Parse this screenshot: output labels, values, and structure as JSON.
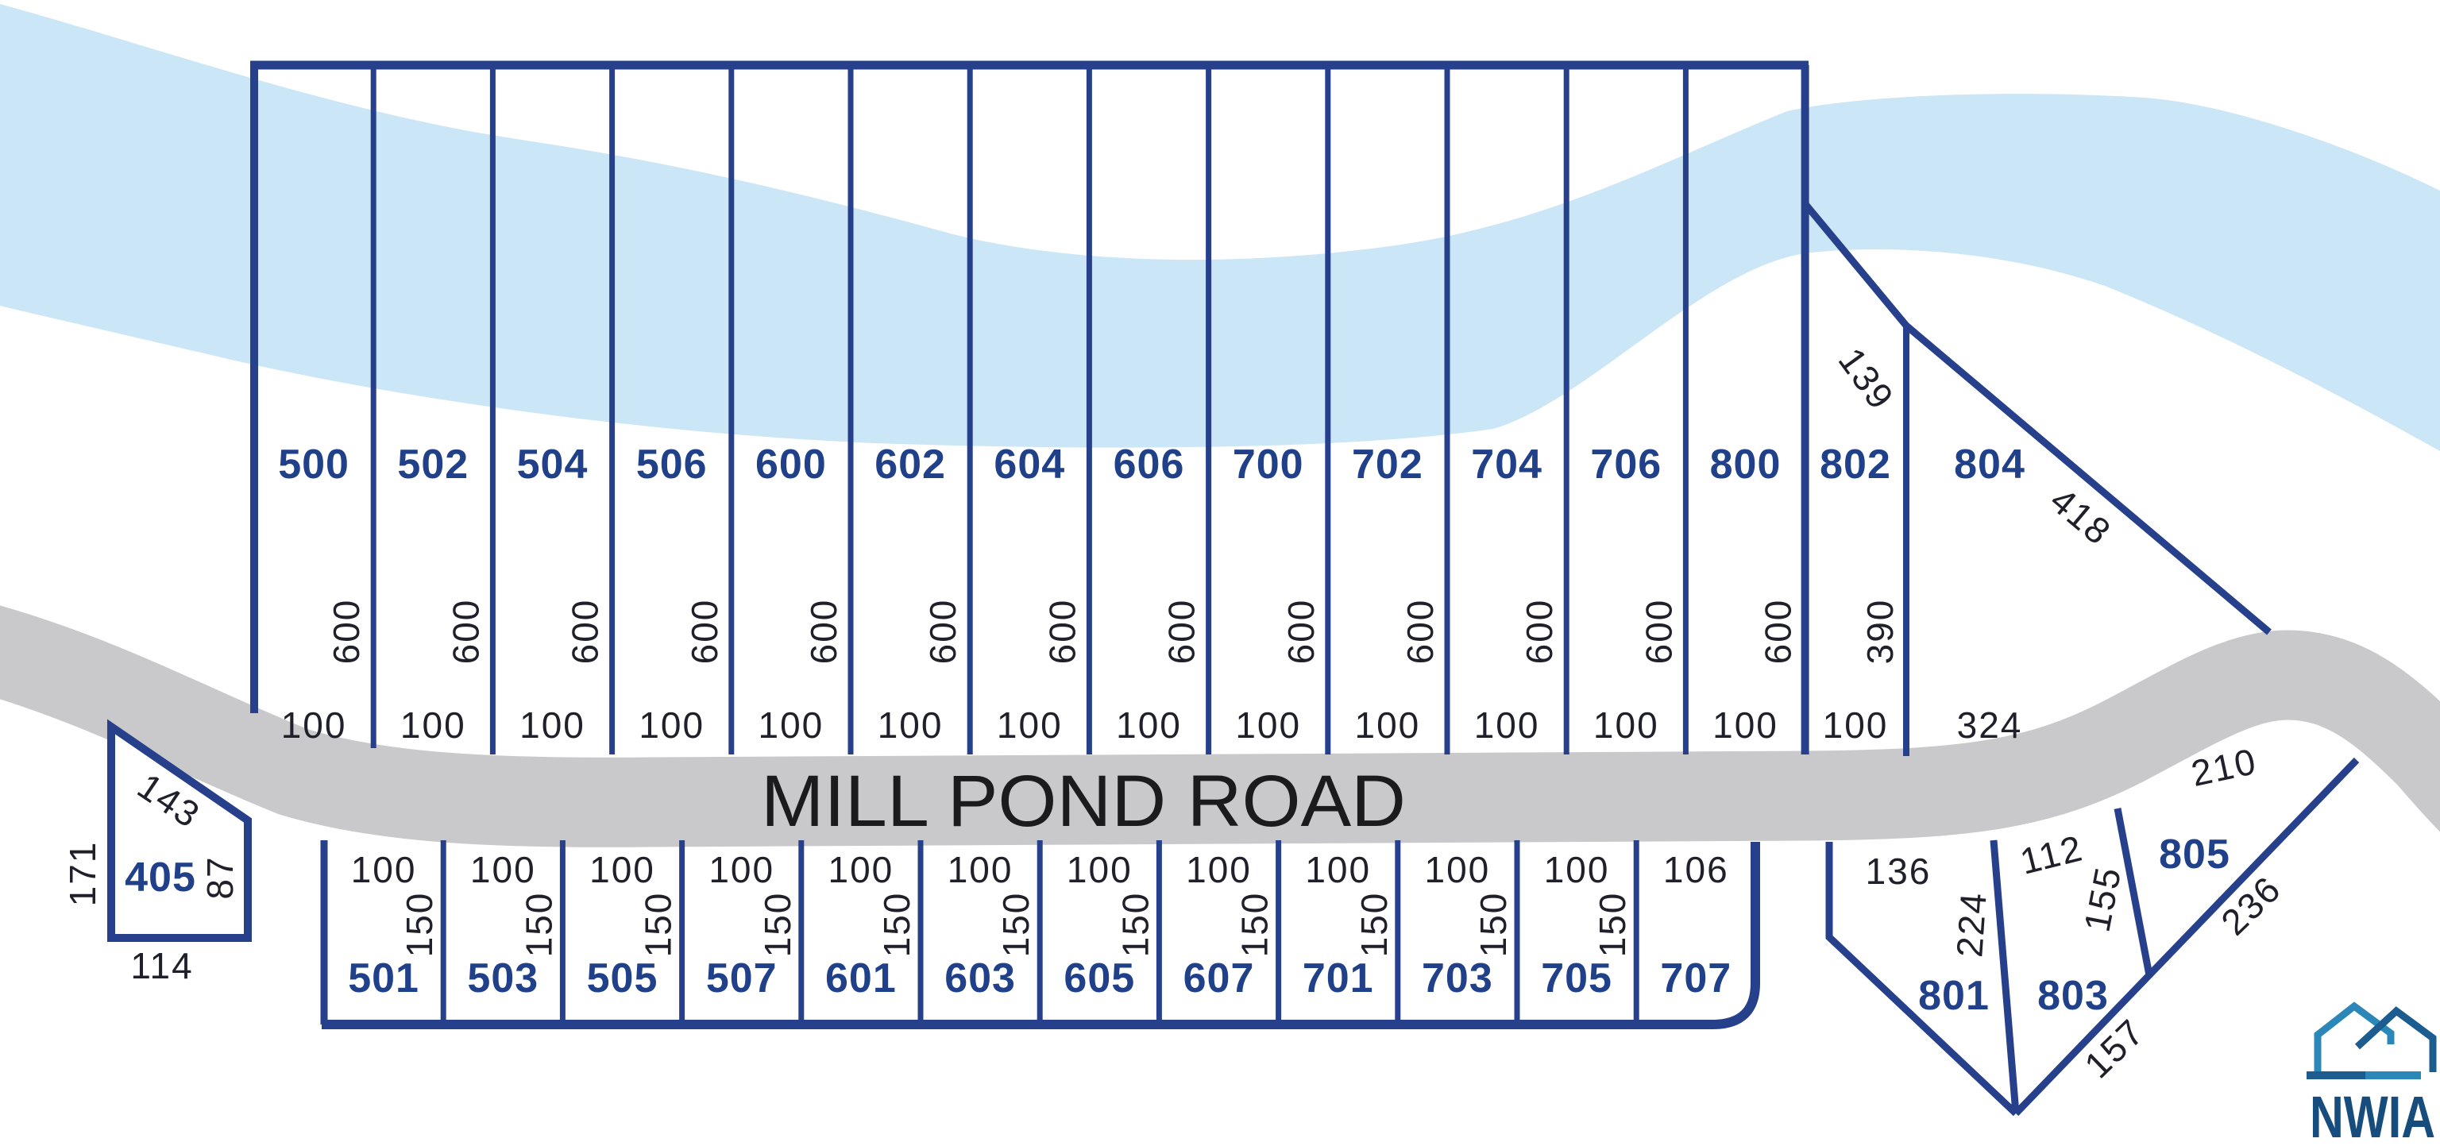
{
  "road": {
    "name": "MILL POND ROAD"
  },
  "colors": {
    "river": "#cbe6f7",
    "road": "#c9c9cb",
    "parcel_line": "#27408b",
    "lot_number_text": "#20408a",
    "dimension_text": "#20202a",
    "logo_teal": "#2b87b8",
    "logo_steel": "#1c5c8e",
    "logo_text": "#164d7d"
  },
  "top_lots": [
    {
      "number": "500",
      "depth": "600",
      "width": "100"
    },
    {
      "number": "502",
      "depth": "600",
      "width": "100"
    },
    {
      "number": "504",
      "depth": "600",
      "width": "100"
    },
    {
      "number": "506",
      "depth": "600",
      "width": "100"
    },
    {
      "number": "600",
      "depth": "600",
      "width": "100"
    },
    {
      "number": "602",
      "depth": "600",
      "width": "100"
    },
    {
      "number": "604",
      "depth": "600",
      "width": "100"
    },
    {
      "number": "606",
      "depth": "600",
      "width": "100"
    },
    {
      "number": "700",
      "depth": "600",
      "width": "100"
    },
    {
      "number": "702",
      "depth": "600",
      "width": "100"
    },
    {
      "number": "704",
      "depth": "600",
      "width": "100"
    },
    {
      "number": "706",
      "depth": "600",
      "width": "100"
    },
    {
      "number": "800",
      "depth": "600",
      "width": "100"
    }
  ],
  "lot_802": {
    "number": "802",
    "depth": "390",
    "width": "100",
    "ne_edge": "139"
  },
  "lot_804": {
    "number": "804",
    "ne_edge": "418",
    "frontage": "324"
  },
  "lot_405": {
    "number": "405",
    "north_edge": "143",
    "west_edge": "171",
    "east_edge": "87",
    "south_edge": "114"
  },
  "bottom_lots": [
    {
      "number": "501",
      "width": "100",
      "depth": "150"
    },
    {
      "number": "503",
      "width": "100",
      "depth": "150"
    },
    {
      "number": "505",
      "width": "100",
      "depth": "150"
    },
    {
      "number": "507",
      "width": "100",
      "depth": "150"
    },
    {
      "number": "601",
      "width": "100",
      "depth": "150"
    },
    {
      "number": "603",
      "width": "100",
      "depth": "150"
    },
    {
      "number": "605",
      "width": "100",
      "depth": "150"
    },
    {
      "number": "607",
      "width": "100",
      "depth": "150"
    },
    {
      "number": "701",
      "width": "100",
      "depth": "150"
    },
    {
      "number": "703",
      "width": "100",
      "depth": "150"
    },
    {
      "number": "705",
      "width": "100",
      "depth": "150"
    },
    {
      "number": "707",
      "width": "106",
      "depth": ""
    }
  ],
  "lot_801": {
    "number": "801",
    "frontage": "136",
    "east_edge": "224"
  },
  "lot_803": {
    "number": "803",
    "frontage": "112",
    "east_edge": "155",
    "south_edge": "157"
  },
  "lot_805": {
    "number": "805",
    "frontage": "210",
    "south_edge": "236"
  },
  "logo": {
    "text": "NWIA"
  }
}
